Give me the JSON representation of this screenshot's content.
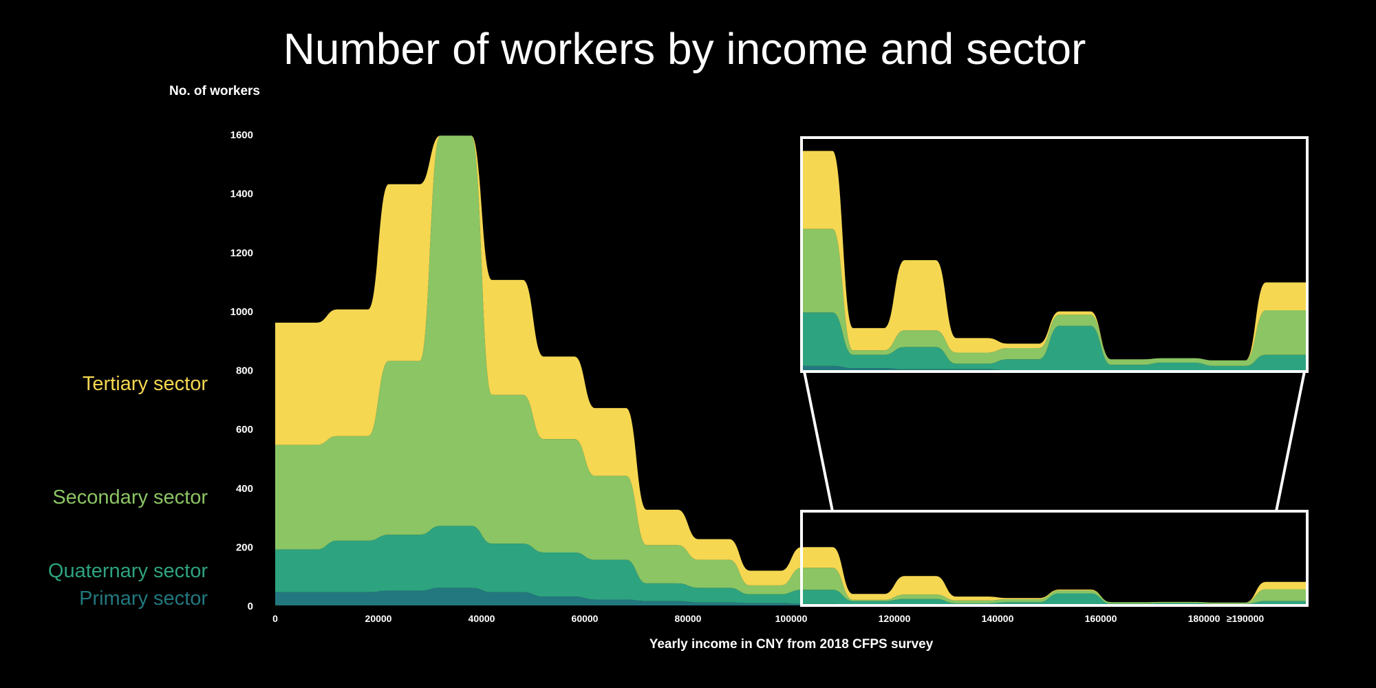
{
  "title": "Number of workers by income and sector",
  "ylabel": "No. of workers",
  "xlabel": "Yearly income in CNY from 2018 CFPS survey",
  "chart_data": {
    "type": "area",
    "stacked": true,
    "title": "Number of workers by income and sector",
    "xlabel": "Yearly income in CNY from 2018 CFPS survey",
    "ylabel": "No. of workers",
    "xlim": [
      0,
      200000
    ],
    "ylim": [
      0,
      1600
    ],
    "x_ticks": [
      "0",
      "20000",
      "40000",
      "60000",
      "80000",
      "100000",
      "120000",
      "140000",
      "160000",
      "180000",
      "≥190000"
    ],
    "y_ticks": [
      "0",
      "200",
      "400",
      "600",
      "800",
      "1000",
      "1200",
      "1400",
      "1600"
    ],
    "bin_width": 10000,
    "bins": [
      0,
      10000,
      20000,
      30000,
      40000,
      50000,
      60000,
      70000,
      80000,
      90000,
      100000,
      110000,
      120000,
      130000,
      140000,
      150000,
      160000,
      170000,
      180000,
      190000
    ],
    "series": [
      {
        "name": "Primary sector",
        "color": "#23787f",
        "values": [
          45,
          45,
          50,
          60,
          45,
          30,
          20,
          15,
          10,
          8,
          5,
          3,
          2,
          2,
          1,
          1,
          1,
          0,
          0,
          1
        ]
      },
      {
        "name": "Quaternary sector",
        "color": "#2ea37f",
        "values": [
          145,
          175,
          190,
          210,
          165,
          150,
          135,
          60,
          50,
          30,
          48,
          12,
          20,
          5,
          10,
          40,
          5,
          8,
          5,
          14
        ]
      },
      {
        "name": "Secondary sector",
        "color": "#8bc564",
        "values": [
          355,
          355,
          590,
          1325,
          505,
          385,
          285,
          130,
          95,
          30,
          75,
          4,
          15,
          10,
          10,
          10,
          5,
          4,
          5,
          40
        ]
      },
      {
        "name": "Tertiary sector",
        "color": "#f5d752",
        "values": [
          415,
          430,
          600,
          0,
          390,
          280,
          230,
          120,
          70,
          50,
          70,
          20,
          63,
          13,
          4,
          3,
          0,
          0,
          0,
          25
        ]
      }
    ],
    "inset": {
      "description_visible": false,
      "x_range": [
        100000,
        200000
      ],
      "shows": "zoomed view of tail"
    }
  }
}
